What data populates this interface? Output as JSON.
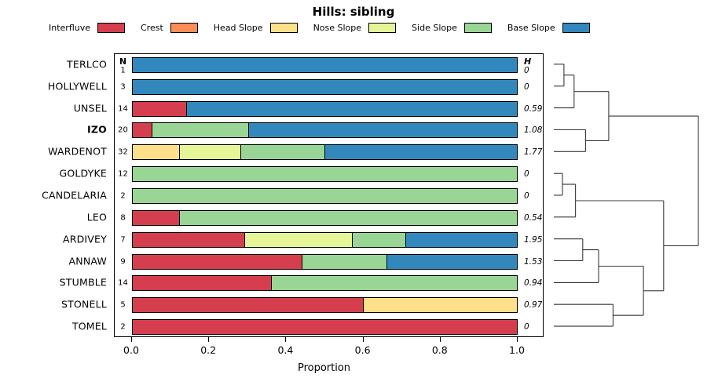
{
  "title": "Hills: sibling",
  "columns": {
    "n": "N",
    "h": "H"
  },
  "chart_data": {
    "type": "bar",
    "subtype": "horizontal-stacked-proportion-with-dendrogram",
    "title": "Hills: sibling",
    "xlabel": "Proportion",
    "xlim": [
      0,
      1
    ],
    "grid": false,
    "legend_position": "top",
    "xticks": {
      "values": [
        0,
        0.2,
        0.4,
        0.6,
        0.8,
        1.0
      ],
      "labels": [
        "0.0",
        "0.2",
        "0.4",
        "0.6",
        "0.8",
        "1.0"
      ]
    },
    "legend": [
      {
        "label": "Interfluve",
        "color": "#d53e4f"
      },
      {
        "label": "Crest",
        "color": "#fc8d59"
      },
      {
        "label": "Head Slope",
        "color": "#fee08b"
      },
      {
        "label": "Nose Slope",
        "color": "#e6f598"
      },
      {
        "label": "Side Slope",
        "color": "#99d594"
      },
      {
        "label": "Base Slope",
        "color": "#3288bd"
      }
    ],
    "rows": [
      {
        "label": "TERLCO",
        "bold": false,
        "n": 1,
        "h": "0",
        "segments": [
          {
            "cat": "Base Slope",
            "value": 1.0
          }
        ]
      },
      {
        "label": "HOLLYWELL",
        "bold": false,
        "n": 3,
        "h": "0",
        "segments": [
          {
            "cat": "Base Slope",
            "value": 1.0
          }
        ]
      },
      {
        "label": "UNSEL",
        "bold": false,
        "n": 14,
        "h": "0.59",
        "segments": [
          {
            "cat": "Interfluve",
            "value": 0.14
          },
          {
            "cat": "Base Slope",
            "value": 0.86
          }
        ]
      },
      {
        "label": "IZO",
        "bold": true,
        "n": 20,
        "h": "1.08",
        "segments": [
          {
            "cat": "Interfluve",
            "value": 0.05
          },
          {
            "cat": "Side Slope",
            "value": 0.25
          },
          {
            "cat": "Base Slope",
            "value": 0.7
          }
        ]
      },
      {
        "label": "WARDENOT",
        "bold": false,
        "n": 32,
        "h": "1.77",
        "segments": [
          {
            "cat": "Head Slope",
            "value": 0.12
          },
          {
            "cat": "Nose Slope",
            "value": 0.16
          },
          {
            "cat": "Side Slope",
            "value": 0.22
          },
          {
            "cat": "Base Slope",
            "value": 0.5
          }
        ]
      },
      {
        "label": "GOLDYKE",
        "bold": false,
        "n": 12,
        "h": "0",
        "segments": [
          {
            "cat": "Side Slope",
            "value": 1.0
          }
        ]
      },
      {
        "label": "CANDELARIA",
        "bold": false,
        "n": 2,
        "h": "0",
        "segments": [
          {
            "cat": "Side Slope",
            "value": 1.0
          }
        ]
      },
      {
        "label": "LEO",
        "bold": false,
        "n": 8,
        "h": "0.54",
        "segments": [
          {
            "cat": "Interfluve",
            "value": 0.12
          },
          {
            "cat": "Side Slope",
            "value": 0.88
          }
        ]
      },
      {
        "label": "ARDIVEY",
        "bold": false,
        "n": 7,
        "h": "1.95",
        "segments": [
          {
            "cat": "Interfluve",
            "value": 0.29
          },
          {
            "cat": "Nose Slope",
            "value": 0.28
          },
          {
            "cat": "Side Slope",
            "value": 0.14
          },
          {
            "cat": "Base Slope",
            "value": 0.29
          }
        ]
      },
      {
        "label": "ANNAW",
        "bold": false,
        "n": 9,
        "h": "1.53",
        "segments": [
          {
            "cat": "Interfluve",
            "value": 0.44
          },
          {
            "cat": "Side Slope",
            "value": 0.22
          },
          {
            "cat": "Base Slope",
            "value": 0.34
          }
        ]
      },
      {
        "label": "STUMBLE",
        "bold": false,
        "n": 14,
        "h": "0.94",
        "segments": [
          {
            "cat": "Interfluve",
            "value": 0.36
          },
          {
            "cat": "Side Slope",
            "value": 0.64
          }
        ]
      },
      {
        "label": "STONELL",
        "bold": false,
        "n": 5,
        "h": "0.97",
        "segments": [
          {
            "cat": "Interfluve",
            "value": 0.6
          },
          {
            "cat": "Head Slope",
            "value": 0.4
          }
        ]
      },
      {
        "label": "TOMEL",
        "bold": false,
        "n": 2,
        "h": "0",
        "segments": [
          {
            "cat": "Interfluve",
            "value": 1.0
          }
        ]
      }
    ],
    "dendrogram": {
      "h": 1.0,
      "children": [
        {
          "h": 0.38,
          "children": [
            {
              "h": 0.14,
              "children": [
                {
                  "h": 0.07,
                  "children": [
                    "TERLCO",
                    "HOLLYWELL"
                  ]
                },
                "UNSEL"
              ]
            },
            {
              "h": 0.22,
              "children": [
                "IZO",
                "WARDENOT"
              ]
            }
          ]
        },
        {
          "h": 0.76,
          "children": [
            {
              "h": 0.15,
              "children": [
                {
                  "h": 0.06,
                  "children": [
                    "GOLDYKE",
                    "CANDELARIA"
                  ]
                },
                "LEO"
              ]
            },
            {
              "h": 0.62,
              "children": [
                {
                  "h": 0.31,
                  "children": [
                    {
                      "h": 0.2,
                      "children": [
                        "ARDIVEY",
                        "ANNAW"
                      ]
                    },
                    "STUMBLE"
                  ]
                },
                {
                  "h": 0.41,
                  "children": [
                    "STONELL",
                    "TOMEL"
                  ]
                }
              ]
            }
          ]
        }
      ]
    }
  }
}
